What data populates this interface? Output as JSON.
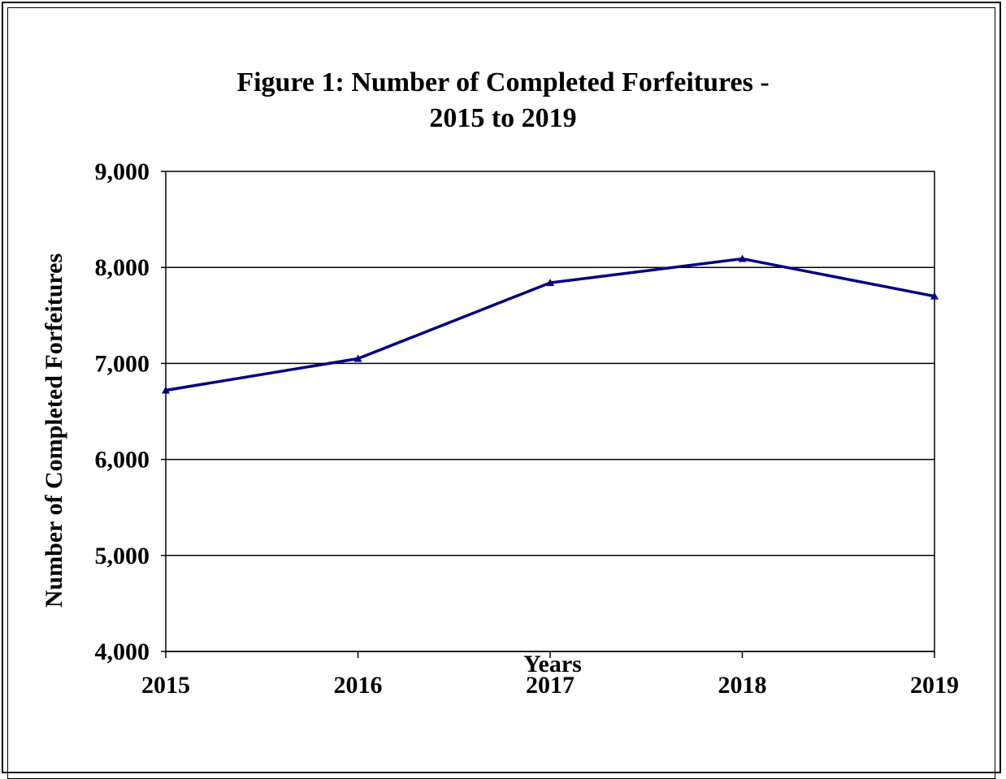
{
  "chart_data": {
    "type": "line",
    "title": "Figure 1:  Number of Completed Forfeitures -\n2015 to 2019",
    "xlabel": "Years",
    "ylabel": "Number of Completed Forfeitures",
    "categories": [
      "2015",
      "2016",
      "2017",
      "2018",
      "2019"
    ],
    "series": [
      {
        "values": [
          6720,
          7050,
          7840,
          8090,
          7700
        ],
        "color": "#000080",
        "marker": "triangle"
      }
    ],
    "ylim": [
      4000,
      9000
    ],
    "yticks": [
      4000,
      5000,
      6000,
      7000,
      8000,
      9000
    ],
    "ytick_labels": [
      "4,000",
      "5,000",
      "6,000",
      "7,000",
      "8,000",
      "9,000"
    ],
    "grid": true,
    "legend": "none"
  }
}
